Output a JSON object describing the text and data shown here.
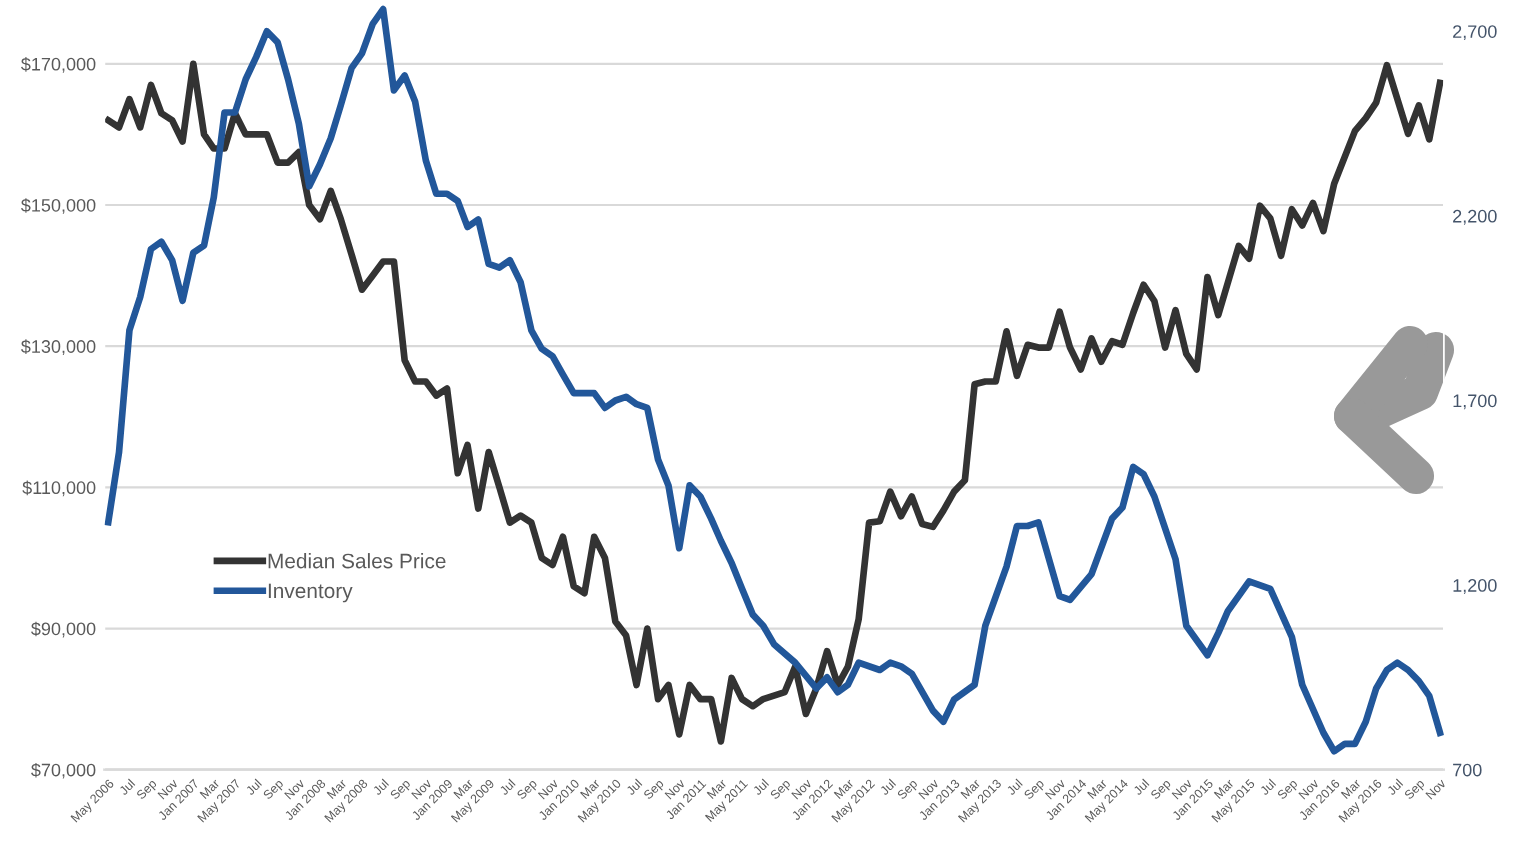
{
  "chart_data": {
    "type": "line",
    "series": [
      {
        "name": "Median Sales Price",
        "color": "#333333",
        "axis": "y",
        "x": [
          "2006-05",
          "2006-06",
          "2006-07",
          "2006-08",
          "2006-09",
          "2006-10",
          "2006-11",
          "2006-12",
          "2007-01",
          "2007-02",
          "2007-03",
          "2007-04",
          "2007-05",
          "2007-06",
          "2007-07",
          "2007-08",
          "2007-09",
          "2007-10",
          "2007-11",
          "2007-12",
          "2008-01",
          "2008-02",
          "2008-03",
          "2008-04",
          "2008-05",
          "2008-06",
          "2008-07",
          "2008-08",
          "2008-09",
          "2008-10",
          "2008-11",
          "2008-12",
          "2009-01",
          "2009-02",
          "2009-03",
          "2009-04",
          "2009-05",
          "2009-06",
          "2009-07",
          "2009-08",
          "2009-09",
          "2009-10",
          "2009-11",
          "2009-12",
          "2010-01",
          "2010-02",
          "2010-03",
          "2010-04",
          "2010-05",
          "2010-06",
          "2010-07",
          "2010-08",
          "2010-09",
          "2010-10",
          "2010-11",
          "2010-12",
          "2011-01",
          "2011-02",
          "2011-03",
          "2011-04",
          "2011-05",
          "2011-06",
          "2011-07",
          "2011-09",
          "2011-10",
          "2011-11",
          "2011-12",
          "2012-01",
          "2012-02",
          "2012-03",
          "2012-04",
          "2012-05",
          "2012-06",
          "2012-07",
          "2012-08",
          "2012-09",
          "2012-10",
          "2012-11",
          "2012-12",
          "2013-01",
          "2013-02",
          "2013-03",
          "2013-04",
          "2013-05",
          "2013-06",
          "2013-07",
          "2013-08",
          "2013-09",
          "2013-10",
          "2013-11",
          "2013-12",
          "2014-01",
          "2014-02",
          "2014-03",
          "2014-04",
          "2014-05",
          "2014-06",
          "2014-07",
          "2014-08",
          "2014-09",
          "2014-10",
          "2014-11",
          "2014-12",
          "2015-01",
          "2015-02",
          "2015-04",
          "2015-05",
          "2015-06",
          "2015-07",
          "2015-08",
          "2015-09",
          "2015-10",
          "2015-11",
          "2015-12",
          "2016-01",
          "2016-03",
          "2016-04",
          "2016-05",
          "2016-06",
          "2016-08",
          "2016-09",
          "2016-10",
          "2016-11"
        ],
        "values": [
          162000,
          161000,
          165000,
          161000,
          167000,
          163000,
          162000,
          159000,
          170000,
          160000,
          158000,
          158000,
          163000,
          160000,
          160000,
          160000,
          156000,
          156000,
          157500,
          150000,
          148000,
          152000,
          148000,
          143000,
          138000,
          140000,
          142000,
          142000,
          128000,
          125000,
          125000,
          123000,
          124000,
          112000,
          116000,
          107000,
          115000,
          110000,
          105000,
          106000,
          105000,
          100000,
          99000,
          103000,
          96000,
          95000,
          103000,
          100000,
          91000,
          89000,
          82000,
          90000,
          80000,
          82000,
          75000,
          82000,
          80000,
          80000,
          74000,
          83000,
          80000,
          79000,
          80000,
          81000,
          84600,
          77900,
          81500,
          86800,
          82000,
          84600,
          91300,
          105000,
          105200,
          109400,
          105900,
          108700,
          104800,
          104400,
          106700,
          109400,
          111000,
          124600,
          125000,
          125000,
          132100,
          125800,
          130200,
          129800,
          129800,
          134900,
          129800,
          126700,
          131100,
          127800,
          130700,
          130200,
          134700,
          138700,
          136400,
          129800,
          135100,
          128900,
          126700,
          139800,
          134400,
          144200,
          142400,
          149900,
          148100,
          142800,
          149400,
          147100,
          150300,
          146300,
          153000,
          160500,
          162300,
          164500,
          169800,
          160100,
          164100,
          159300,
          167300
        ]
      },
      {
        "name": "Inventory",
        "color": "#22579a",
        "axis": "y2",
        "x": [
          "2006-05",
          "2006-06",
          "2006-07",
          "2006-08",
          "2006-09",
          "2006-10",
          "2006-11",
          "2006-12",
          "2007-01",
          "2007-02",
          "2007-03",
          "2007-04",
          "2007-05",
          "2007-06",
          "2007-07",
          "2007-08",
          "2007-09",
          "2007-10",
          "2007-11",
          "2007-12",
          "2008-01",
          "2008-02",
          "2008-03",
          "2008-04",
          "2008-05",
          "2008-06",
          "2008-07",
          "2008-08",
          "2008-09",
          "2008-10",
          "2008-11",
          "2008-12",
          "2009-01",
          "2009-02",
          "2009-03",
          "2009-04",
          "2009-05",
          "2009-06",
          "2009-07",
          "2009-08",
          "2009-09",
          "2009-10",
          "2009-11",
          "2009-12",
          "2010-01",
          "2010-02",
          "2010-03",
          "2010-04",
          "2010-05",
          "2010-06",
          "2010-07",
          "2010-08",
          "2010-09",
          "2010-10",
          "2010-11",
          "2010-12",
          "2011-01",
          "2011-02",
          "2011-03",
          "2011-04",
          "2011-05",
          "2011-06",
          "2011-07",
          "2011-08",
          "2011-10",
          "2011-12",
          "2012-01",
          "2012-02",
          "2012-03",
          "2012-04",
          "2012-06",
          "2012-07",
          "2012-08",
          "2012-09",
          "2012-11",
          "2012-12",
          "2013-01",
          "2013-03",
          "2013-04",
          "2013-06",
          "2013-07",
          "2013-08",
          "2013-09",
          "2013-11",
          "2013-12",
          "2014-02",
          "2014-04",
          "2014-05",
          "2014-06",
          "2014-07",
          "2014-08",
          "2014-10",
          "2014-11",
          "2015-01",
          "2015-02",
          "2015-03",
          "2015-05",
          "2015-07",
          "2015-09",
          "2015-10",
          "2015-12",
          "2016-01",
          "2016-02",
          "2016-03",
          "2016-04",
          "2016-05",
          "2016-06",
          "2016-07",
          "2016-08",
          "2016-09",
          "2016-10",
          "2016-11"
        ],
        "values": [
          1370,
          1560,
          1890,
          1980,
          2110,
          2130,
          2080,
          1970,
          2100,
          2120,
          2250,
          2480,
          2480,
          2570,
          2630,
          2700,
          2670,
          2570,
          2450,
          2280,
          2340,
          2410,
          2500,
          2600,
          2640,
          2720,
          2760,
          2540,
          2580,
          2510,
          2350,
          2260,
          2260,
          2240,
          2170,
          2190,
          2070,
          2060,
          2080,
          2020,
          1890,
          1840,
          1820,
          1770,
          1720,
          1720,
          1720,
          1680,
          1700,
          1710,
          1690,
          1680,
          1540,
          1470,
          1300,
          1470,
          1440,
          1380,
          1320,
          1260,
          1190,
          1120,
          1090,
          1040,
          990,
          920,
          950,
          910,
          930,
          990,
          970,
          990,
          980,
          960,
          860,
          830,
          890,
          930,
          1090,
          1250,
          1360,
          1360,
          1370,
          1170,
          1160,
          1230,
          1380,
          1410,
          1520,
          1500,
          1440,
          1270,
          1090,
          1010,
          1070,
          1130,
          1210,
          1190,
          1060,
          930,
          800,
          750,
          770,
          770,
          830,
          920,
          970,
          990,
          970,
          940,
          900,
          800
        ]
      }
    ],
    "xlim": [
      "2006-04-20",
      "2016-11-12"
    ],
    "xticks": [
      {
        "value": "2006-05",
        "label": "May 2006"
      },
      {
        "value": "2006-07",
        "label": "Jul"
      },
      {
        "value": "2006-09",
        "label": "Sep"
      },
      {
        "value": "2006-11",
        "label": "Nov"
      },
      {
        "value": "2007-01",
        "label": "Jan 2007"
      },
      {
        "value": "2007-03",
        "label": "Mar"
      },
      {
        "value": "2007-05",
        "label": "May 2007"
      },
      {
        "value": "2007-07",
        "label": "Jul"
      },
      {
        "value": "2007-09",
        "label": "Sep"
      },
      {
        "value": "2007-11",
        "label": "Nov"
      },
      {
        "value": "2008-01",
        "label": "Jan 2008"
      },
      {
        "value": "2008-03",
        "label": "Mar"
      },
      {
        "value": "2008-05",
        "label": "May 2008"
      },
      {
        "value": "2008-07",
        "label": "Jul"
      },
      {
        "value": "2008-09",
        "label": "Sep"
      },
      {
        "value": "2008-11",
        "label": "Nov"
      },
      {
        "value": "2009-01",
        "label": "Jan 2009"
      },
      {
        "value": "2009-03",
        "label": "Mar"
      },
      {
        "value": "2009-05",
        "label": "May 2009"
      },
      {
        "value": "2009-07",
        "label": "Jul"
      },
      {
        "value": "2009-09",
        "label": "Sep"
      },
      {
        "value": "2009-11",
        "label": "Nov"
      },
      {
        "value": "2010-01",
        "label": "Jan 2010"
      },
      {
        "value": "2010-03",
        "label": "Mar"
      },
      {
        "value": "2010-05",
        "label": "May 2010"
      },
      {
        "value": "2010-07",
        "label": "Jul"
      },
      {
        "value": "2010-09",
        "label": "Sep"
      },
      {
        "value": "2010-11",
        "label": "Nov"
      },
      {
        "value": "2011-01",
        "label": "Jan 2011"
      },
      {
        "value": "2011-03",
        "label": "Mar"
      },
      {
        "value": "2011-05",
        "label": "May 2011"
      },
      {
        "value": "2011-07",
        "label": "Jul"
      },
      {
        "value": "2011-09",
        "label": "Sep"
      },
      {
        "value": "2011-11",
        "label": "Nov"
      },
      {
        "value": "2012-01",
        "label": "Jan 2012"
      },
      {
        "value": "2012-03",
        "label": "Mar"
      },
      {
        "value": "2012-05",
        "label": "May 2012"
      },
      {
        "value": "2012-07",
        "label": "Jul"
      },
      {
        "value": "2012-09",
        "label": "Sep"
      },
      {
        "value": "2012-11",
        "label": "Nov"
      },
      {
        "value": "2013-01",
        "label": "Jan 2013"
      },
      {
        "value": "2013-03",
        "label": "Mar"
      },
      {
        "value": "2013-05",
        "label": "May 2013"
      },
      {
        "value": "2013-07",
        "label": "Jul"
      },
      {
        "value": "2013-09",
        "label": "Sep"
      },
      {
        "value": "2013-11",
        "label": "Nov"
      },
      {
        "value": "2014-01",
        "label": "Jan 2014"
      },
      {
        "value": "2014-03",
        "label": "Mar"
      },
      {
        "value": "2014-05",
        "label": "May 2014"
      },
      {
        "value": "2014-07",
        "label": "Jul"
      },
      {
        "value": "2014-09",
        "label": "Sep"
      },
      {
        "value": "2014-11",
        "label": "Nov"
      },
      {
        "value": "2015-01",
        "label": "Jan 2015"
      },
      {
        "value": "2015-03",
        "label": "Mar"
      },
      {
        "value": "2015-05",
        "label": "May 2015"
      },
      {
        "value": "2015-07",
        "label": "Jul"
      },
      {
        "value": "2015-09",
        "label": "Sep"
      },
      {
        "value": "2015-11",
        "label": "Nov"
      },
      {
        "value": "2016-01",
        "label": "Jan 2016"
      },
      {
        "value": "2016-03",
        "label": "Mar"
      },
      {
        "value": "2016-05",
        "label": "May 2016"
      },
      {
        "value": "2016-07",
        "label": "Jul"
      },
      {
        "value": "2016-09",
        "label": "Sep"
      },
      {
        "value": "2016-11",
        "label": "Nov"
      }
    ],
    "ylim": [
      70000,
      178800
    ],
    "yticks": [
      {
        "value": 70000,
        "label": "$70,000"
      },
      {
        "value": 90000,
        "label": "$90,000"
      },
      {
        "value": 110000,
        "label": "$110,000"
      },
      {
        "value": 130000,
        "label": "$130,000"
      },
      {
        "value": 150000,
        "label": "$150,000"
      },
      {
        "value": 170000,
        "label": "$170,000"
      }
    ],
    "y2lim": [
      700,
      2780
    ],
    "y2ticks": [
      {
        "value": 700,
        "label": "700"
      },
      {
        "value": 1200,
        "label": "1,200"
      },
      {
        "value": 1700,
        "label": "1,700"
      },
      {
        "value": 2200,
        "label": "2,200"
      },
      {
        "value": 2700,
        "label": "2,700"
      }
    ],
    "grid": "y",
    "legend": "center left",
    "marker": "none",
    "line_style": "solid"
  }
}
